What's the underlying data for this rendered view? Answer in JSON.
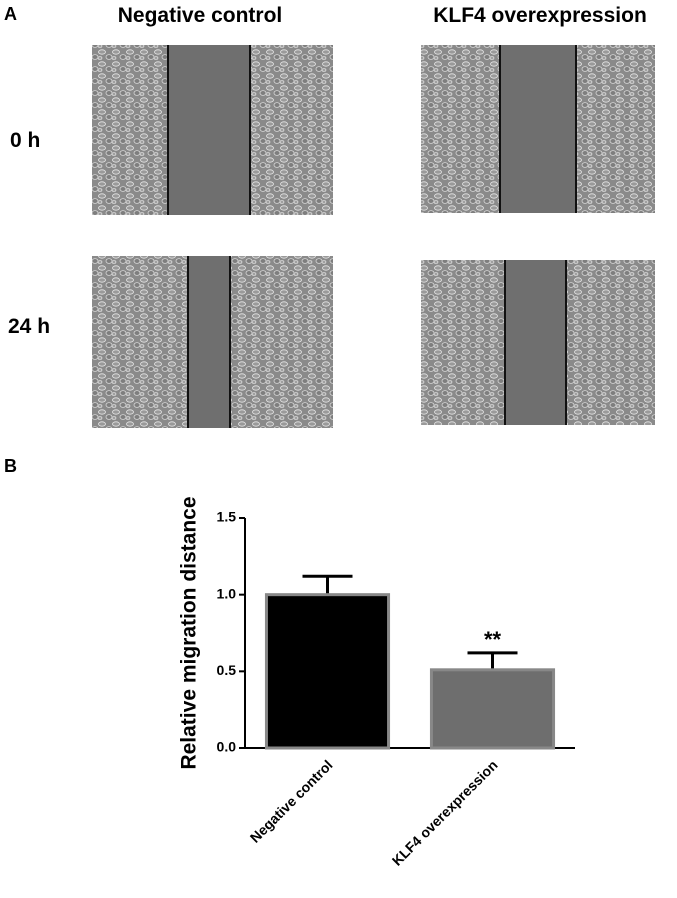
{
  "panel_a": {
    "label": "A",
    "columns": [
      "Negative control",
      "KLF4 overexpression"
    ],
    "rows": [
      "0 h",
      "24 h"
    ]
  },
  "panel_b": {
    "label": "B"
  },
  "chart_data": {
    "type": "bar",
    "y_label": "Relative migration distance",
    "categories": [
      "Negative control",
      "KLF4 overexpression"
    ],
    "values": [
      1.0,
      0.51
    ],
    "errors": [
      0.12,
      0.11
    ],
    "colors": [
      "#000000",
      "#6e6e6e"
    ],
    "significance": [
      null,
      "**"
    ],
    "ylim": [
      0,
      1.5
    ],
    "yticks": [
      {
        "value": 0,
        "label": "0.0"
      },
      0.5,
      {
        "value": 1,
        "label": "1.0"
      },
      1.5
    ]
  }
}
